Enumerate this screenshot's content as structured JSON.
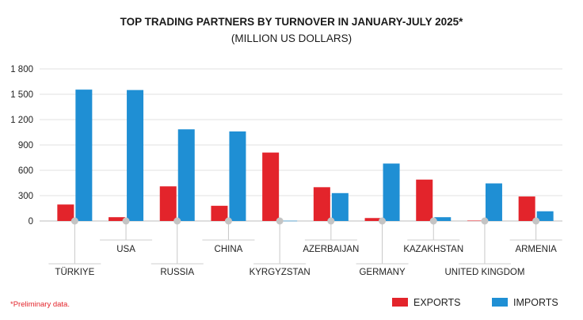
{
  "chart_data": {
    "type": "bar",
    "title": "TOP TRADING PARTNERS BY TURNOVER IN JANUARY-JULY 2025*",
    "subtitle": "(MILLION US DOLLARS)",
    "categories": [
      "TÜRKIYE",
      "USA",
      "RUSSIA",
      "CHINA",
      "KYRGYZSTAN",
      "AZERBAIJAN",
      "GERMANY",
      "KAZAKHSTAN",
      "UNITED KINGDOM",
      "ARMENIA"
    ],
    "series": [
      {
        "name": "EXPORTS",
        "color": "#e3242b",
        "values": [
          195,
          45,
          410,
          180,
          810,
          400,
          35,
          490,
          5,
          290
        ]
      },
      {
        "name": "IMPORTS",
        "color": "#1f8fd4",
        "values": [
          1555,
          1550,
          1085,
          1060,
          3,
          330,
          680,
          45,
          445,
          115
        ]
      }
    ],
    "ylim": [
      0,
      1800
    ],
    "yticks": [
      0,
      300,
      600,
      900,
      1200,
      1500,
      1800
    ],
    "ytick_labels": [
      "0",
      "300",
      "600",
      "900",
      "1 200",
      "1 500",
      "1 800"
    ],
    "grid": true,
    "legend_position": "bottom-right",
    "footnote": "*Preliminary data."
  }
}
